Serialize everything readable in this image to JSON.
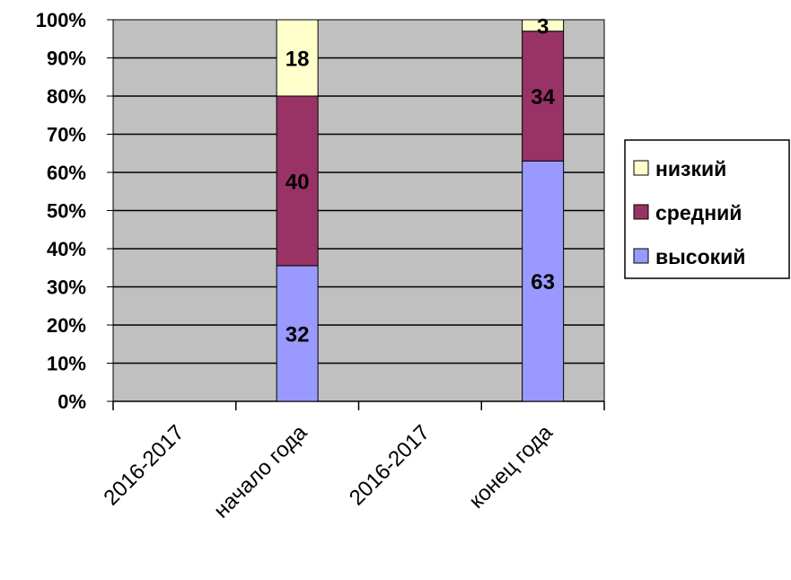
{
  "chart_data": {
    "type": "bar",
    "stacked": true,
    "stack_mode": "percent",
    "categories": [
      "2016-2017 начало года",
      "2016-2017 конец года"
    ],
    "category_lines": [
      [
        "2016-2017",
        "начало года"
      ],
      [
        "2016-2017",
        "конец года"
      ]
    ],
    "series": [
      {
        "name": "высокий",
        "values": [
          32,
          63
        ],
        "color": "#9999FF"
      },
      {
        "name": "средний",
        "values": [
          40,
          34
        ],
        "color": "#993366"
      },
      {
        "name": "низкий",
        "values": [
          18,
          3
        ],
        "color": "#FFFFCC"
      }
    ],
    "data_labels": [
      [
        "32",
        "63"
      ],
      [
        "40",
        "34"
      ],
      [
        "18",
        "3"
      ]
    ],
    "legend_order": [
      "низкий",
      "средний",
      "высокий"
    ],
    "yticks": [
      "0%",
      "10%",
      "20%",
      "30%",
      "40%",
      "50%",
      "60%",
      "70%",
      "80%",
      "90%",
      "100%"
    ],
    "ylim": [
      0,
      100
    ],
    "grid": true,
    "legend_position": "right",
    "plot_background": "#C0C0C0"
  }
}
